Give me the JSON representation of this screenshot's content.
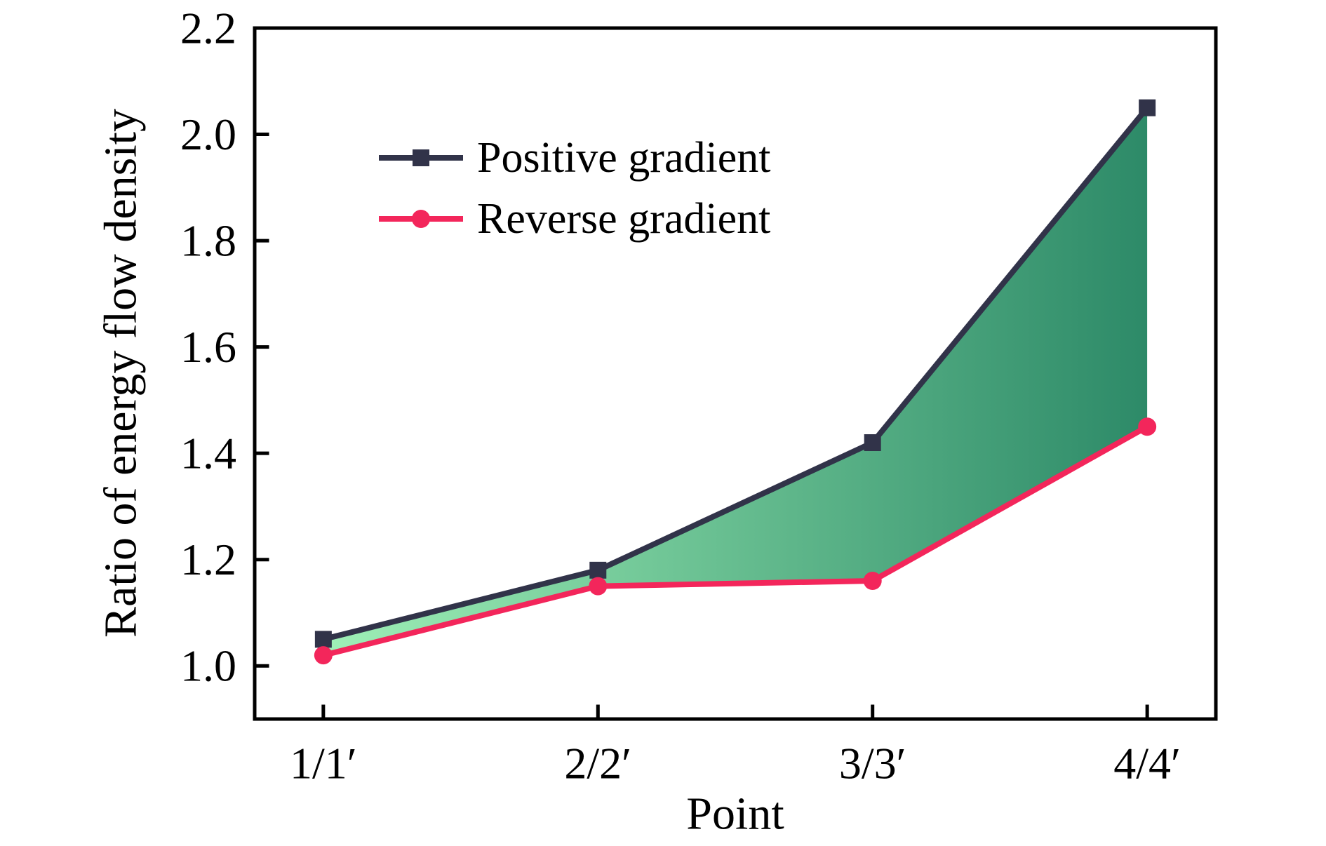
{
  "chart_data": {
    "type": "line",
    "title": "",
    "xlabel": "Point",
    "ylabel": "Ratio of energy flow density",
    "categories": [
      "1/1′",
      "2/2′",
      "3/3′",
      "4/4′"
    ],
    "x_positions": [
      1,
      2,
      3,
      4
    ],
    "xlim": [
      0.75,
      4.25
    ],
    "ylim": [
      0.9,
      2.2
    ],
    "ytick_labels": [
      "1.0",
      "1.2",
      "1.4",
      "1.6",
      "1.8",
      "2.0",
      "2.2"
    ],
    "grid": false,
    "legend_position": "upper left inside plot",
    "series": [
      {
        "name": "Positive gradient",
        "marker": "square",
        "color": "#313349",
        "values": [
          1.05,
          1.18,
          1.42,
          2.05
        ]
      },
      {
        "name": "Reverse gradient",
        "marker": "circle",
        "color": "#f3265b",
        "values": [
          1.02,
          1.15,
          1.16,
          1.45
        ]
      }
    ],
    "fill_between": {
      "between_series": [
        "Positive gradient",
        "Reverse gradient"
      ],
      "gradient_colors": [
        "#9ff0b7",
        "#2d8a68"
      ],
      "gradient_direction": "left-to-right"
    },
    "axis_color": "#000000",
    "text_color": "#000000",
    "background": "#ffffff"
  }
}
